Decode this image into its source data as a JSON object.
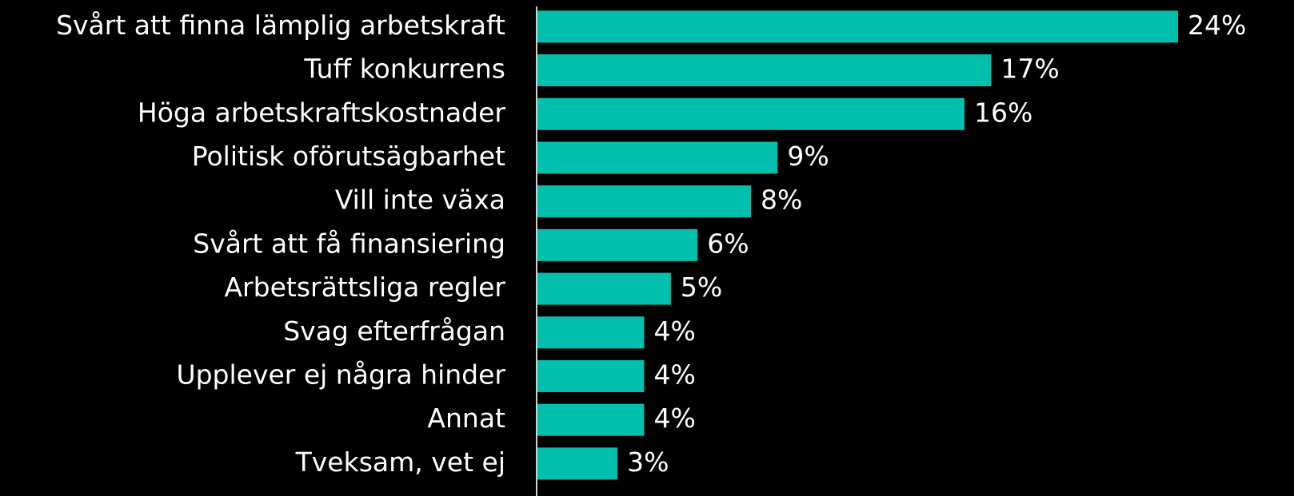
{
  "chart_data": {
    "type": "barh",
    "categories": [
      "Svårt att finna lämplig arbetskraft",
      "Tuff konkurrens",
      "Höga arbetskraftskostnader",
      "Politisk oförutsägbarhet",
      "Vill inte växa",
      "Svårt att få finansiering",
      "Arbetsrättsliga regler",
      "Svag efterfrågan",
      "Upplever ej några hinder",
      "Annat",
      "Tveksam, vet ej"
    ],
    "values": [
      24,
      17,
      16,
      9,
      8,
      6,
      5,
      4,
      4,
      4,
      3
    ],
    "value_labels": [
      "24%",
      "17%",
      "16%",
      "9%",
      "8%",
      "6%",
      "5%",
      "4%",
      "4%",
      "4%",
      "3%"
    ],
    "color": "#00c0ad"
  }
}
